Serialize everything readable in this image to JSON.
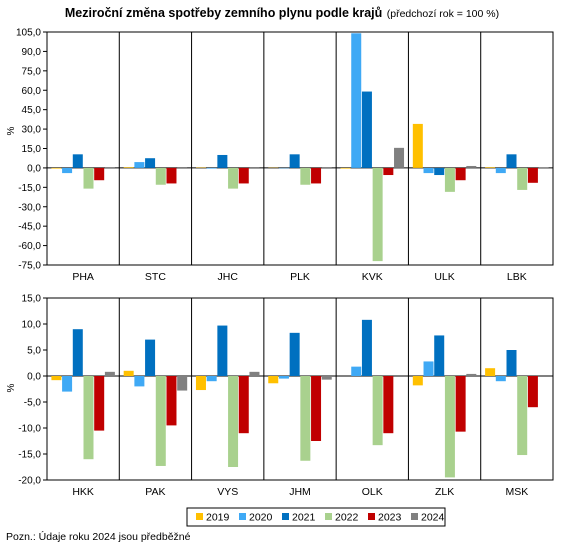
{
  "title": {
    "main": "Meziroční změna spotřeby zemního plynu podle krajů",
    "sub": "(předchozí rok = 100 %)"
  },
  "note": "Pozn.: Údaje roku 2024 jsou předběžné",
  "colors": {
    "2019": "#ffc000",
    "2020": "#3fa9f5",
    "2021": "#0070c0",
    "2022": "#a9d18e",
    "2023": "#c00000",
    "2024": "#808080"
  },
  "chart_data": [
    {
      "type": "bar",
      "ylabel": "%",
      "ylim": [
        -75,
        105
      ],
      "ytick_step": 15,
      "grid": false,
      "categories": [
        "PHA",
        "STC",
        "JHC",
        "PLK",
        "KVK",
        "ULK",
        "LBK"
      ],
      "series": [
        {
          "name": "2019",
          "values": [
            -0.5,
            0.5,
            0.3,
            0.2,
            -0.5,
            34.0,
            0.5
          ]
        },
        {
          "name": "2020",
          "values": [
            -4.0,
            4.5,
            -0.5,
            -0.3,
            104.0,
            -4.0,
            -4.0
          ]
        },
        {
          "name": "2021",
          "values": [
            10.5,
            7.5,
            10.0,
            10.5,
            59.0,
            -5.5,
            10.5
          ]
        },
        {
          "name": "2022",
          "values": [
            -16.0,
            -13.0,
            -16.0,
            -13.0,
            -72.0,
            -18.5,
            -17.0
          ]
        },
        {
          "name": "2023",
          "values": [
            -9.5,
            -12.0,
            -12.0,
            -12.0,
            -5.5,
            -9.5,
            -11.5
          ]
        },
        {
          "name": "2024",
          "values": [
            0.5,
            0.2,
            0.2,
            0.5,
            15.5,
            1.5,
            0.3
          ]
        }
      ]
    },
    {
      "type": "bar",
      "ylabel": "%",
      "ylim": [
        -20,
        15
      ],
      "ytick_step": 5,
      "grid": false,
      "categories": [
        "HKK",
        "PAK",
        "VYS",
        "JHM",
        "OLK",
        "ZLK",
        "MSK"
      ],
      "series": [
        {
          "name": "2019",
          "values": [
            -0.8,
            1.0,
            -2.7,
            -1.4,
            0.0,
            -1.8,
            1.5
          ]
        },
        {
          "name": "2020",
          "values": [
            -3.0,
            -2.0,
            -1.0,
            -0.5,
            1.8,
            2.8,
            -1.0
          ]
        },
        {
          "name": "2021",
          "values": [
            9.0,
            7.0,
            9.7,
            8.3,
            10.8,
            7.8,
            5.0
          ]
        },
        {
          "name": "2022",
          "values": [
            -16.0,
            -17.3,
            -17.5,
            -16.3,
            -13.3,
            -19.5,
            -15.2
          ]
        },
        {
          "name": "2023",
          "values": [
            -10.5,
            -9.5,
            -11.0,
            -12.5,
            -11.0,
            -10.7,
            -6.0
          ]
        },
        {
          "name": "2024",
          "values": [
            0.8,
            -2.8,
            0.8,
            -0.7,
            0.0,
            0.4,
            0.0
          ]
        }
      ]
    }
  ],
  "legend": [
    "2019",
    "2020",
    "2021",
    "2022",
    "2023",
    "2024"
  ]
}
